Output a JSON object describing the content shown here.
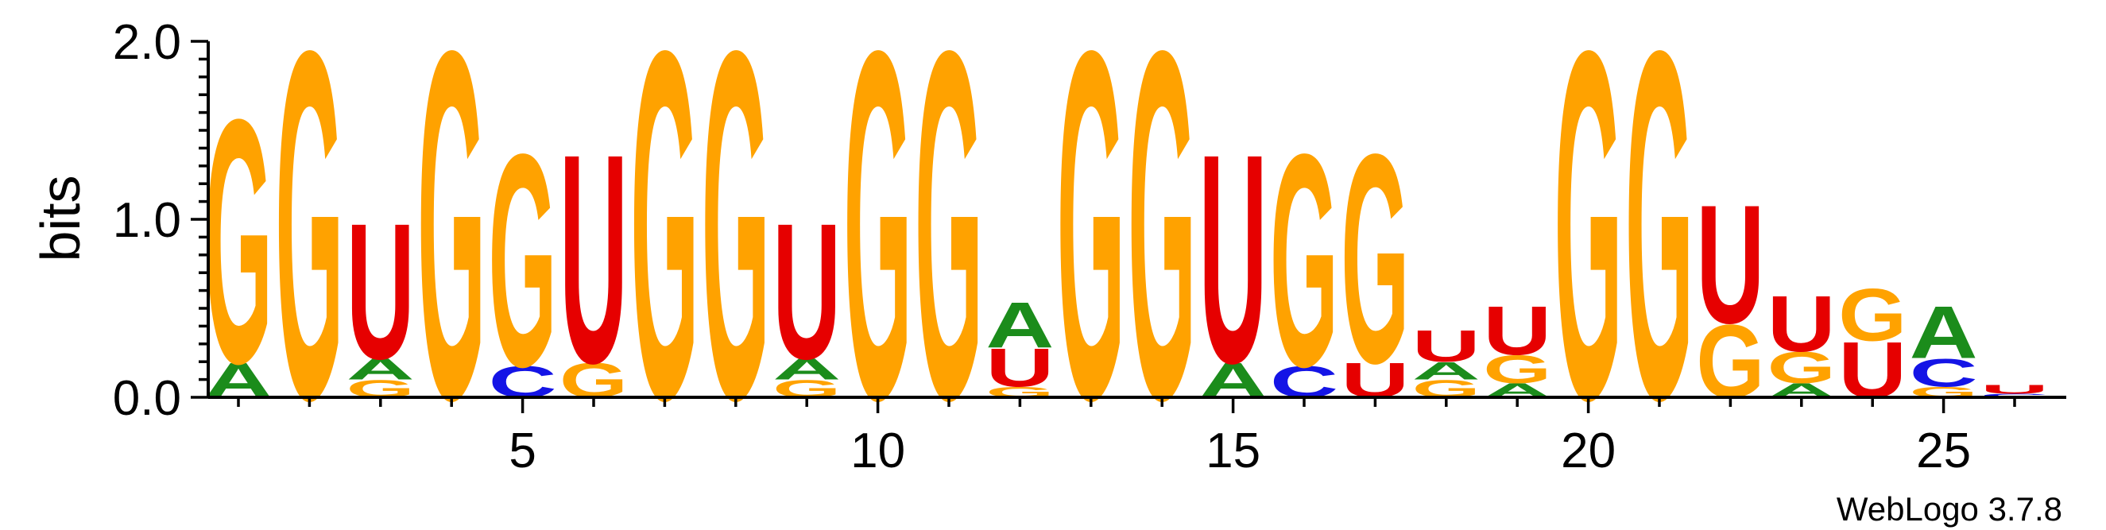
{
  "chart_data": {
    "type": "sequence-logo",
    "title": "",
    "ylabel": "bits",
    "xlabel": "",
    "ylim": [
      0,
      2.0
    ],
    "y_ticks": [
      "0.0",
      "1.0",
      "2.0"
    ],
    "x_ticks": [
      5,
      10,
      15,
      20,
      25
    ],
    "x_range": [
      1,
      26
    ],
    "credit": "WebLogo 3.7.8",
    "colors": {
      "A": "#1b8c1b",
      "C": "#1414e6",
      "G": "#ffa200",
      "U": "#e60000"
    },
    "positions": [
      {
        "pos": 1,
        "stack": [
          {
            "l": "A",
            "h": 0.2
          },
          {
            "l": "G",
            "h": 1.4
          }
        ]
      },
      {
        "pos": 2,
        "stack": [
          {
            "l": "G",
            "h": 2.0
          }
        ]
      },
      {
        "pos": 3,
        "stack": [
          {
            "l": "G",
            "h": 0.1
          },
          {
            "l": "A",
            "h": 0.12
          },
          {
            "l": "U",
            "h": 0.78
          }
        ]
      },
      {
        "pos": 4,
        "stack": [
          {
            "l": "G",
            "h": 2.0
          }
        ]
      },
      {
        "pos": 5,
        "stack": [
          {
            "l": "C",
            "h": 0.18
          },
          {
            "l": "G",
            "h": 1.22
          }
        ]
      },
      {
        "pos": 6,
        "stack": [
          {
            "l": "G",
            "h": 0.2
          },
          {
            "l": "U",
            "h": 1.2
          }
        ]
      },
      {
        "pos": 7,
        "stack": [
          {
            "l": "G",
            "h": 2.0
          }
        ]
      },
      {
        "pos": 8,
        "stack": [
          {
            "l": "G",
            "h": 2.0
          }
        ]
      },
      {
        "pos": 9,
        "stack": [
          {
            "l": "G",
            "h": 0.1
          },
          {
            "l": "A",
            "h": 0.12
          },
          {
            "l": "U",
            "h": 0.78
          }
        ]
      },
      {
        "pos": 10,
        "stack": [
          {
            "l": "G",
            "h": 2.0
          }
        ]
      },
      {
        "pos": 11,
        "stack": [
          {
            "l": "G",
            "h": 2.0
          }
        ]
      },
      {
        "pos": 12,
        "stack": [
          {
            "l": "G",
            "h": 0.06
          },
          {
            "l": "U",
            "h": 0.22
          },
          {
            "l": "A",
            "h": 0.26
          }
        ]
      },
      {
        "pos": 13,
        "stack": [
          {
            "l": "G",
            "h": 2.0
          }
        ]
      },
      {
        "pos": 14,
        "stack": [
          {
            "l": "G",
            "h": 2.0
          }
        ]
      },
      {
        "pos": 15,
        "stack": [
          {
            "l": "A",
            "h": 0.2
          },
          {
            "l": "U",
            "h": 1.2
          }
        ]
      },
      {
        "pos": 16,
        "stack": [
          {
            "l": "C",
            "h": 0.18
          },
          {
            "l": "G",
            "h": 1.22
          }
        ]
      },
      {
        "pos": 17,
        "stack": [
          {
            "l": "U",
            "h": 0.2
          },
          {
            "l": "G",
            "h": 1.2
          }
        ]
      },
      {
        "pos": 18,
        "stack": [
          {
            "l": "G",
            "h": 0.1
          },
          {
            "l": "A",
            "h": 0.1
          },
          {
            "l": "U",
            "h": 0.18
          }
        ]
      },
      {
        "pos": 19,
        "stack": [
          {
            "l": "A",
            "h": 0.08
          },
          {
            "l": "G",
            "h": 0.16
          },
          {
            "l": "U",
            "h": 0.28
          }
        ]
      },
      {
        "pos": 20,
        "stack": [
          {
            "l": "G",
            "h": 2.0
          }
        ]
      },
      {
        "pos": 21,
        "stack": [
          {
            "l": "G",
            "h": 2.0
          }
        ]
      },
      {
        "pos": 22,
        "stack": [
          {
            "l": "G",
            "h": 0.42
          },
          {
            "l": "U",
            "h": 0.68
          }
        ]
      },
      {
        "pos": 23,
        "stack": [
          {
            "l": "A",
            "h": 0.08
          },
          {
            "l": "G",
            "h": 0.18
          },
          {
            "l": "U",
            "h": 0.32
          }
        ]
      },
      {
        "pos": 24,
        "stack": [
          {
            "l": "U",
            "h": 0.32
          },
          {
            "l": "G",
            "h": 0.3
          }
        ]
      },
      {
        "pos": 25,
        "stack": [
          {
            "l": "G",
            "h": 0.06
          },
          {
            "l": "C",
            "h": 0.16
          },
          {
            "l": "A",
            "h": 0.3
          }
        ]
      },
      {
        "pos": 26,
        "stack": [
          {
            "l": "C",
            "h": 0.02
          },
          {
            "l": "U",
            "h": 0.05
          }
        ]
      }
    ]
  }
}
